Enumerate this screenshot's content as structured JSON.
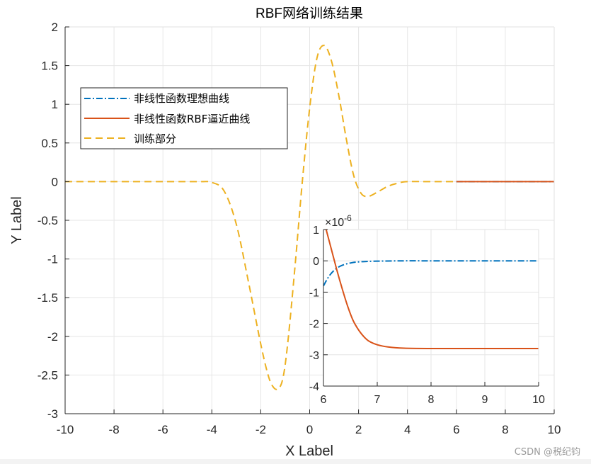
{
  "title": "RBF网络训练结果",
  "watermark": "CSDN @税纪钧",
  "legend": {
    "items": [
      {
        "label": "非线性函数理想曲线",
        "color": "#0072BD",
        "style": "dash-dot"
      },
      {
        "label": "非线性函数RBF逼近曲线",
        "color": "#D95319",
        "style": "solid"
      },
      {
        "label": "训练部分",
        "color": "#EDB120",
        "style": "dashed"
      }
    ]
  },
  "colors": {
    "ideal": "#0072BD",
    "approx": "#D95319",
    "train": "#EDB120",
    "grid": "#e6e6e6",
    "axis": "#262626"
  },
  "main_axes": {
    "xlabel": "X Label",
    "ylabel": "Y Label",
    "xticks": [
      "-10",
      "-8",
      "-6",
      "-4",
      "-2",
      "0",
      "2",
      "4",
      "6",
      "8",
      "10"
    ],
    "yticks": [
      "2",
      "1.5",
      "1",
      "0.5",
      "0",
      "-0.5",
      "-1",
      "-1.5",
      "-2",
      "-2.5",
      "-3"
    ]
  },
  "inset_axes": {
    "exponent_label": "×10",
    "exponent_power": "-6",
    "xticks": [
      "6",
      "7",
      "8",
      "9",
      "10"
    ],
    "yticks": [
      "1",
      "0",
      "-1",
      "-2",
      "-3",
      "-4"
    ]
  },
  "chart_data": [
    {
      "type": "line",
      "title": "RBF网络训练结果",
      "xlabel": "X Label",
      "ylabel": "Y Label",
      "xlim": [
        -10,
        10
      ],
      "ylim": [
        -3,
        2
      ],
      "grid": true,
      "legend_position": "upper-left",
      "series": [
        {
          "name": "训练部分",
          "style": "dashed",
          "color": "#EDB120",
          "x": [
            -10,
            -8,
            -6,
            -4.5,
            -4,
            -3.5,
            -3,
            -2.5,
            -2,
            -1.7,
            -1.5,
            -1.3,
            -1.1,
            -0.9,
            -0.6,
            -0.3,
            0,
            0.3,
            0.6,
            0.9,
            1.2,
            1.5,
            1.8,
            2.1,
            2.4,
            2.8,
            3.2,
            3.6,
            4,
            5,
            6
          ],
          "y": [
            0,
            0,
            0,
            0,
            -0.01,
            -0.12,
            -0.55,
            -1.3,
            -2.1,
            -2.5,
            -2.65,
            -2.68,
            -2.55,
            -2.1,
            -1.1,
            0.0,
            0.95,
            1.6,
            1.76,
            1.55,
            1.1,
            0.55,
            0.08,
            -0.15,
            -0.19,
            -0.13,
            -0.06,
            -0.02,
            0,
            0,
            0
          ]
        },
        {
          "name": "非线性函数RBF逼近曲线",
          "style": "solid",
          "color": "#D95319",
          "x": [
            6,
            7,
            8,
            9,
            10
          ],
          "y": [
            0,
            0,
            0,
            0,
            0
          ]
        },
        {
          "name": "非线性函数理想曲线",
          "style": "dash-dot",
          "color": "#0072BD",
          "x": [
            6,
            7,
            8,
            9,
            10
          ],
          "y": [
            0,
            0,
            0,
            0,
            0
          ]
        }
      ]
    },
    {
      "type": "line",
      "title": "inset (zoom x 6-10)",
      "xlim": [
        6,
        10
      ],
      "ylim": [
        -4,
        1
      ],
      "y_scale_factor": "1e-6",
      "grid": true,
      "series": [
        {
          "name": "非线性函数理想曲线",
          "style": "dash-dot",
          "color": "#0072BD",
          "x": [
            6.0,
            6.1,
            6.2,
            6.3,
            6.4,
            6.5,
            6.6,
            6.8,
            7.0,
            7.5,
            8,
            9,
            10
          ],
          "y": [
            -0.8,
            -0.5,
            -0.3,
            -0.18,
            -0.11,
            -0.07,
            -0.04,
            -0.02,
            -0.01,
            0,
            0,
            0,
            0
          ]
        },
        {
          "name": "非线性函数RBF逼近曲线",
          "style": "solid",
          "color": "#D95319",
          "x": [
            6.05,
            6.15,
            6.25,
            6.35,
            6.45,
            6.55,
            6.65,
            6.75,
            6.85,
            7.0,
            7.2,
            7.5,
            8,
            9,
            10
          ],
          "y": [
            1.0,
            0.35,
            -0.3,
            -0.9,
            -1.45,
            -1.9,
            -2.2,
            -2.42,
            -2.57,
            -2.68,
            -2.75,
            -2.79,
            -2.8,
            -2.8,
            -2.8
          ]
        }
      ]
    }
  ]
}
